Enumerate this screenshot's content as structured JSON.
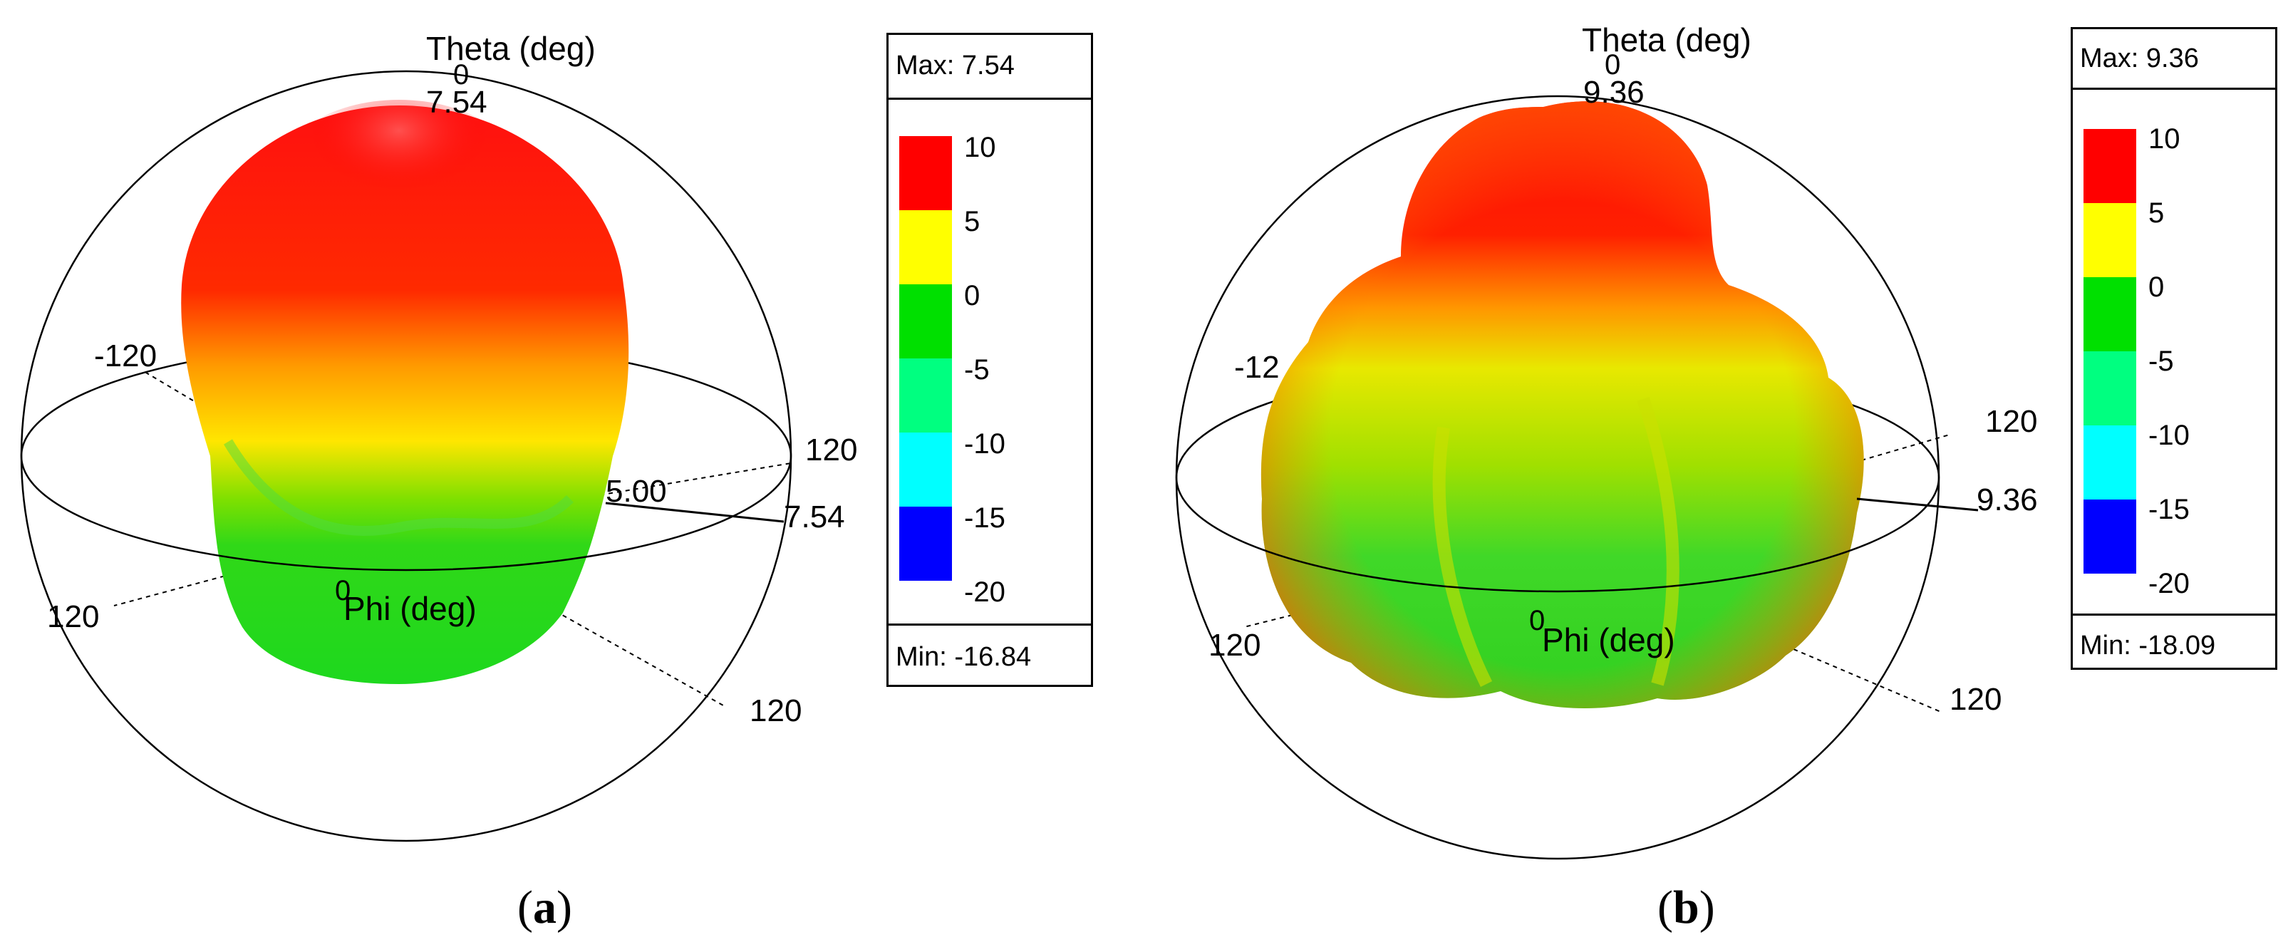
{
  "chart_data": [
    {
      "type": "3d-radiation-pattern",
      "caption": "a",
      "theta_axis_label": "Theta (deg)",
      "phi_axis_label": "Phi (deg)",
      "theta_tick": "0",
      "phi_ticks": [
        "0",
        "120",
        "-120",
        "120"
      ],
      "max_value_labels": [
        "7.54",
        "7.54"
      ],
      "partial_label": "5.00",
      "legend": {
        "max_label": "Max: 7.54",
        "min_label": "Min: -16.84",
        "ticks": [
          "10",
          "5",
          "0",
          "-5",
          "-10",
          "-15",
          "-20"
        ],
        "colors": [
          "#ff0000",
          "#ffff00",
          "#00e000",
          "#00ff80",
          "#00ffff",
          "#0000ff"
        ]
      },
      "max": 7.54,
      "min": -16.84
    },
    {
      "type": "3d-radiation-pattern",
      "caption": "b",
      "theta_axis_label": "Theta (deg)",
      "phi_axis_label": "Phi (deg)",
      "theta_tick": "0",
      "phi_ticks": [
        "0",
        "120",
        "-12",
        "120"
      ],
      "max_value_labels": [
        "9.36",
        "9.36"
      ],
      "legend": {
        "max_label": "Max: 9.36",
        "min_label": "Min: -18.09",
        "ticks": [
          "10",
          "5",
          "0",
          "-5",
          "-10",
          "-15",
          "-20"
        ],
        "colors": [
          "#ff0000",
          "#ffff00",
          "#00e000",
          "#00ff80",
          "#00ffff",
          "#0000ff"
        ]
      },
      "max": 9.36,
      "min": -18.09
    }
  ]
}
